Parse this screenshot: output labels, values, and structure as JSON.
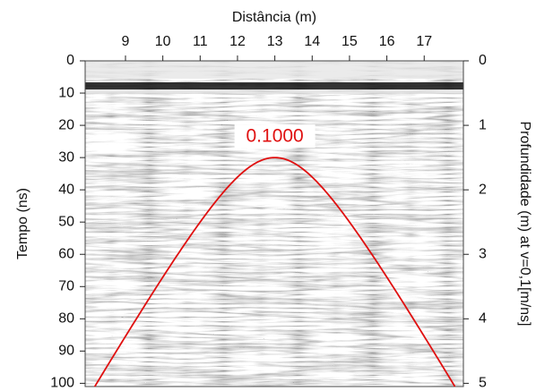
{
  "chart_data": {
    "type": "radargram",
    "x_label": "Distância (m)",
    "y_label": "Tempo (ns)",
    "y2_label": "Profundidade (m) at v=0,1[m/ns]",
    "xlim": [
      7.92,
      18.05
    ],
    "xticks": [
      9,
      10,
      11,
      12,
      13,
      14,
      15,
      16,
      17
    ],
    "ylim": [
      0,
      101
    ],
    "yticks": [
      0,
      10,
      20,
      30,
      40,
      50,
      60,
      70,
      80,
      90,
      100
    ],
    "y2lim": [
      0,
      5.05
    ],
    "y2ticks": [
      0,
      1,
      2,
      3,
      4,
      5
    ],
    "fit": {
      "x0": 13,
      "t0": 30,
      "velocity": 0.1,
      "velocity_label": "0.1000",
      "color": "#e01010"
    }
  }
}
